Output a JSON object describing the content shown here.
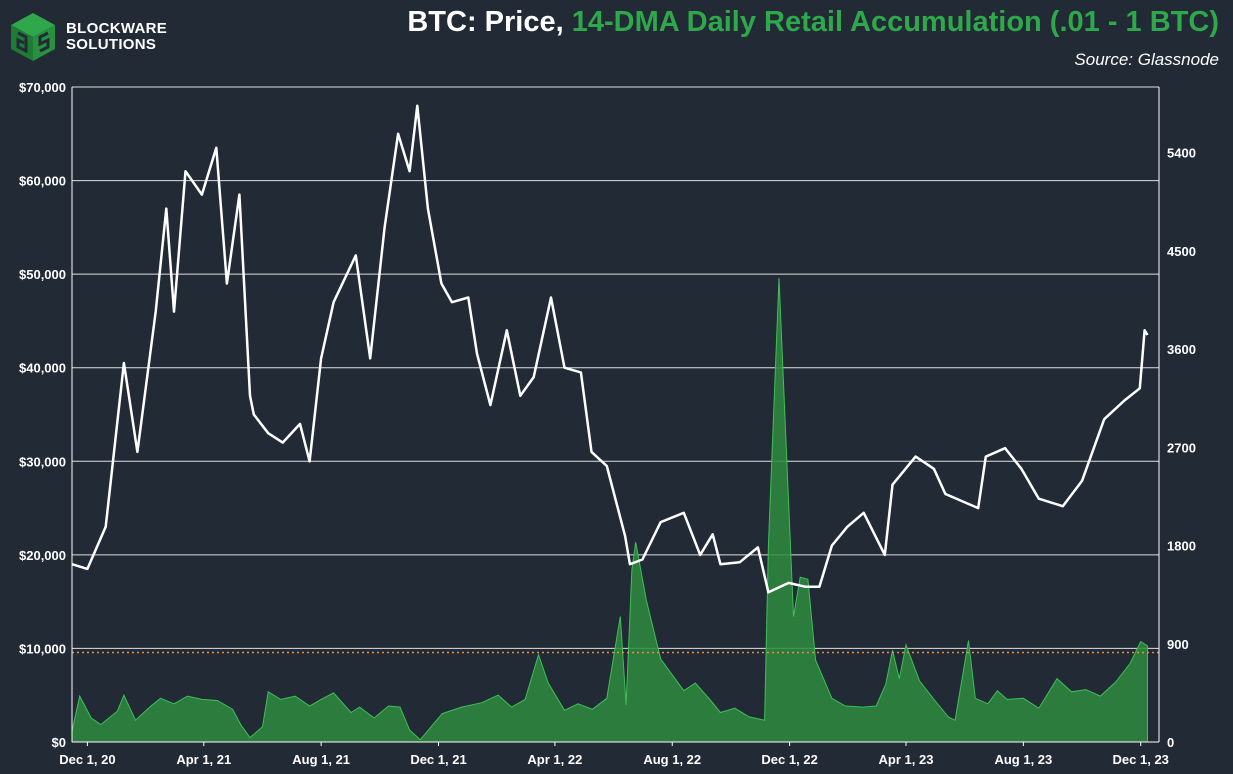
{
  "logo": {
    "line1": "BLOCKWARE",
    "line2": "SOLUTIONS"
  },
  "header": {
    "title_white": "BTC: Price,",
    "title_green": " 14-DMA Daily Retail Accumulation (.01 - 1 BTC)",
    "source": "Source: Glassnode"
  },
  "colors": {
    "background": "#222a36",
    "price_line": "#ffffff",
    "accumulation_fill": "#2e8b3e",
    "reference_line": "#e8913a",
    "title_green": "#2ea84a"
  },
  "chart_data": {
    "type": "line",
    "x_ticks": [
      "Dec 1, 20",
      "Apr 1, 21",
      "Aug 1, 21",
      "Dec 1, 21",
      "Apr 1, 22",
      "Aug 1, 22",
      "Dec 1, 22",
      "Apr 1, 23",
      "Aug 1, 23",
      "Dec 1, 23"
    ],
    "y_left_ticks": [
      "$0",
      "$10,000",
      "$20,000",
      "$30,000",
      "$40,000",
      "$50,000",
      "$60,000",
      "$70,000"
    ],
    "y_right_ticks": [
      "0",
      "900",
      "1800",
      "2700",
      "3600",
      "4500",
      "5400"
    ],
    "y_left_range": [
      0,
      70000
    ],
    "y_right_range": [
      0,
      6000
    ],
    "grid": "horizontal",
    "reference_line_right": 820,
    "series": [
      {
        "axis": "left",
        "style": "line",
        "points": [
          [
            "2020-11-15",
            19000
          ],
          [
            "2020-12-01",
            18500
          ],
          [
            "2020-12-20",
            23000
          ],
          [
            "2021-01-08",
            40500
          ],
          [
            "2021-01-22",
            31000
          ],
          [
            "2021-02-10",
            46000
          ],
          [
            "2021-02-21",
            57000
          ],
          [
            "2021-03-01",
            46000
          ],
          [
            "2021-03-13",
            61000
          ],
          [
            "2021-03-30",
            58500
          ],
          [
            "2021-04-14",
            63500
          ],
          [
            "2021-04-25",
            49000
          ],
          [
            "2021-05-08",
            58500
          ],
          [
            "2021-05-19",
            37000
          ],
          [
            "2021-05-23",
            35000
          ],
          [
            "2021-06-07",
            33000
          ],
          [
            "2021-06-22",
            32000
          ],
          [
            "2021-07-10",
            34000
          ],
          [
            "2021-07-20",
            30000
          ],
          [
            "2021-08-01",
            41000
          ],
          [
            "2021-08-14",
            47000
          ],
          [
            "2021-09-06",
            52000
          ],
          [
            "2021-09-21",
            41000
          ],
          [
            "2021-10-06",
            55000
          ],
          [
            "2021-10-20",
            65000
          ],
          [
            "2021-11-01",
            61000
          ],
          [
            "2021-11-09",
            68000
          ],
          [
            "2021-11-20",
            57000
          ],
          [
            "2021-12-04",
            49000
          ],
          [
            "2021-12-15",
            47000
          ],
          [
            "2022-01-01",
            47500
          ],
          [
            "2022-01-10",
            41500
          ],
          [
            "2022-01-24",
            36000
          ],
          [
            "2022-02-10",
            44000
          ],
          [
            "2022-02-24",
            37000
          ],
          [
            "2022-03-10",
            39000
          ],
          [
            "2022-03-28",
            47500
          ],
          [
            "2022-04-11",
            40000
          ],
          [
            "2022-04-28",
            39500
          ],
          [
            "2022-05-09",
            31000
          ],
          [
            "2022-05-25",
            29500
          ],
          [
            "2022-06-13",
            22000
          ],
          [
            "2022-06-18",
            19000
          ],
          [
            "2022-07-01",
            19500
          ],
          [
            "2022-07-20",
            23500
          ],
          [
            "2022-08-13",
            24500
          ],
          [
            "2022-08-30",
            20000
          ],
          [
            "2022-09-12",
            22200
          ],
          [
            "2022-09-20",
            19000
          ],
          [
            "2022-10-10",
            19200
          ],
          [
            "2022-10-29",
            20800
          ],
          [
            "2022-11-09",
            16000
          ],
          [
            "2022-11-30",
            17000
          ],
          [
            "2022-12-17",
            16600
          ],
          [
            "2023-01-01",
            16600
          ],
          [
            "2023-01-14",
            21000
          ],
          [
            "2023-01-30",
            23000
          ],
          [
            "2023-02-16",
            24500
          ],
          [
            "2023-03-10",
            20000
          ],
          [
            "2023-03-18",
            27500
          ],
          [
            "2023-04-11",
            30500
          ],
          [
            "2023-04-30",
            29200
          ],
          [
            "2023-05-12",
            26500
          ],
          [
            "2023-06-15",
            25000
          ],
          [
            "2023-06-23",
            30500
          ],
          [
            "2023-07-13",
            31400
          ],
          [
            "2023-07-30",
            29200
          ],
          [
            "2023-08-17",
            26000
          ],
          [
            "2023-09-11",
            25200
          ],
          [
            "2023-10-01",
            27900
          ],
          [
            "2023-10-24",
            34500
          ],
          [
            "2023-11-14",
            36500
          ],
          [
            "2023-11-30",
            37800
          ],
          [
            "2023-12-05",
            44000
          ],
          [
            "2023-12-08",
            43500
          ]
        ]
      },
      {
        "axis": "right",
        "style": "area",
        "points": [
          [
            "2020-11-15",
            100
          ],
          [
            "2020-11-23",
            420
          ],
          [
            "2020-12-05",
            220
          ],
          [
            "2020-12-15",
            160
          ],
          [
            "2021-01-01",
            280
          ],
          [
            "2021-01-08",
            430
          ],
          [
            "2021-01-20",
            200
          ],
          [
            "2021-02-05",
            330
          ],
          [
            "2021-02-15",
            400
          ],
          [
            "2021-03-01",
            350
          ],
          [
            "2021-03-15",
            420
          ],
          [
            "2021-03-30",
            390
          ],
          [
            "2021-04-15",
            380
          ],
          [
            "2021-05-01",
            300
          ],
          [
            "2021-05-10",
            150
          ],
          [
            "2021-05-19",
            40
          ],
          [
            "2021-06-01",
            140
          ],
          [
            "2021-06-07",
            460
          ],
          [
            "2021-06-20",
            390
          ],
          [
            "2021-07-05",
            420
          ],
          [
            "2021-07-20",
            330
          ],
          [
            "2021-08-01",
            390
          ],
          [
            "2021-08-14",
            450
          ],
          [
            "2021-09-01",
            270
          ],
          [
            "2021-09-10",
            320
          ],
          [
            "2021-09-25",
            220
          ],
          [
            "2021-10-10",
            330
          ],
          [
            "2021-10-22",
            320
          ],
          [
            "2021-11-01",
            110
          ],
          [
            "2021-11-12",
            20
          ],
          [
            "2021-11-27",
            180
          ],
          [
            "2021-12-05",
            260
          ],
          [
            "2021-12-25",
            320
          ],
          [
            "2022-01-15",
            360
          ],
          [
            "2022-02-01",
            430
          ],
          [
            "2022-02-15",
            320
          ],
          [
            "2022-03-01",
            390
          ],
          [
            "2022-03-15",
            800
          ],
          [
            "2022-03-25",
            540
          ],
          [
            "2022-04-11",
            290
          ],
          [
            "2022-04-25",
            350
          ],
          [
            "2022-05-10",
            300
          ],
          [
            "2022-05-25",
            400
          ],
          [
            "2022-06-08",
            1150
          ],
          [
            "2022-06-14",
            340
          ],
          [
            "2022-06-20",
            1580
          ],
          [
            "2022-06-24",
            1830
          ],
          [
            "2022-07-05",
            1300
          ],
          [
            "2022-07-20",
            760
          ],
          [
            "2022-08-13",
            470
          ],
          [
            "2022-08-25",
            540
          ],
          [
            "2022-09-10",
            380
          ],
          [
            "2022-09-20",
            270
          ],
          [
            "2022-10-05",
            310
          ],
          [
            "2022-10-20",
            230
          ],
          [
            "2022-11-05",
            200
          ],
          [
            "2022-11-09",
            1800
          ],
          [
            "2022-11-20",
            4250
          ],
          [
            "2022-12-05",
            1150
          ],
          [
            "2022-12-12",
            1510
          ],
          [
            "2022-12-20",
            1490
          ],
          [
            "2022-12-28",
            750
          ],
          [
            "2023-01-14",
            400
          ],
          [
            "2023-01-28",
            330
          ],
          [
            "2023-02-15",
            320
          ],
          [
            "2023-03-01",
            330
          ],
          [
            "2023-03-11",
            530
          ],
          [
            "2023-03-18",
            840
          ],
          [
            "2023-03-25",
            580
          ],
          [
            "2023-04-01",
            890
          ],
          [
            "2023-04-15",
            560
          ],
          [
            "2023-05-01",
            380
          ],
          [
            "2023-05-15",
            230
          ],
          [
            "2023-05-22",
            200
          ],
          [
            "2023-06-05",
            930
          ],
          [
            "2023-06-12",
            400
          ],
          [
            "2023-06-25",
            350
          ],
          [
            "2023-07-05",
            470
          ],
          [
            "2023-07-15",
            390
          ],
          [
            "2023-08-01",
            400
          ],
          [
            "2023-08-17",
            310
          ],
          [
            "2023-09-05",
            580
          ],
          [
            "2023-09-20",
            460
          ],
          [
            "2023-10-05",
            480
          ],
          [
            "2023-10-20",
            420
          ],
          [
            "2023-11-05",
            550
          ],
          [
            "2023-11-20",
            720
          ],
          [
            "2023-12-01",
            920
          ],
          [
            "2023-12-08",
            880
          ]
        ]
      }
    ]
  }
}
